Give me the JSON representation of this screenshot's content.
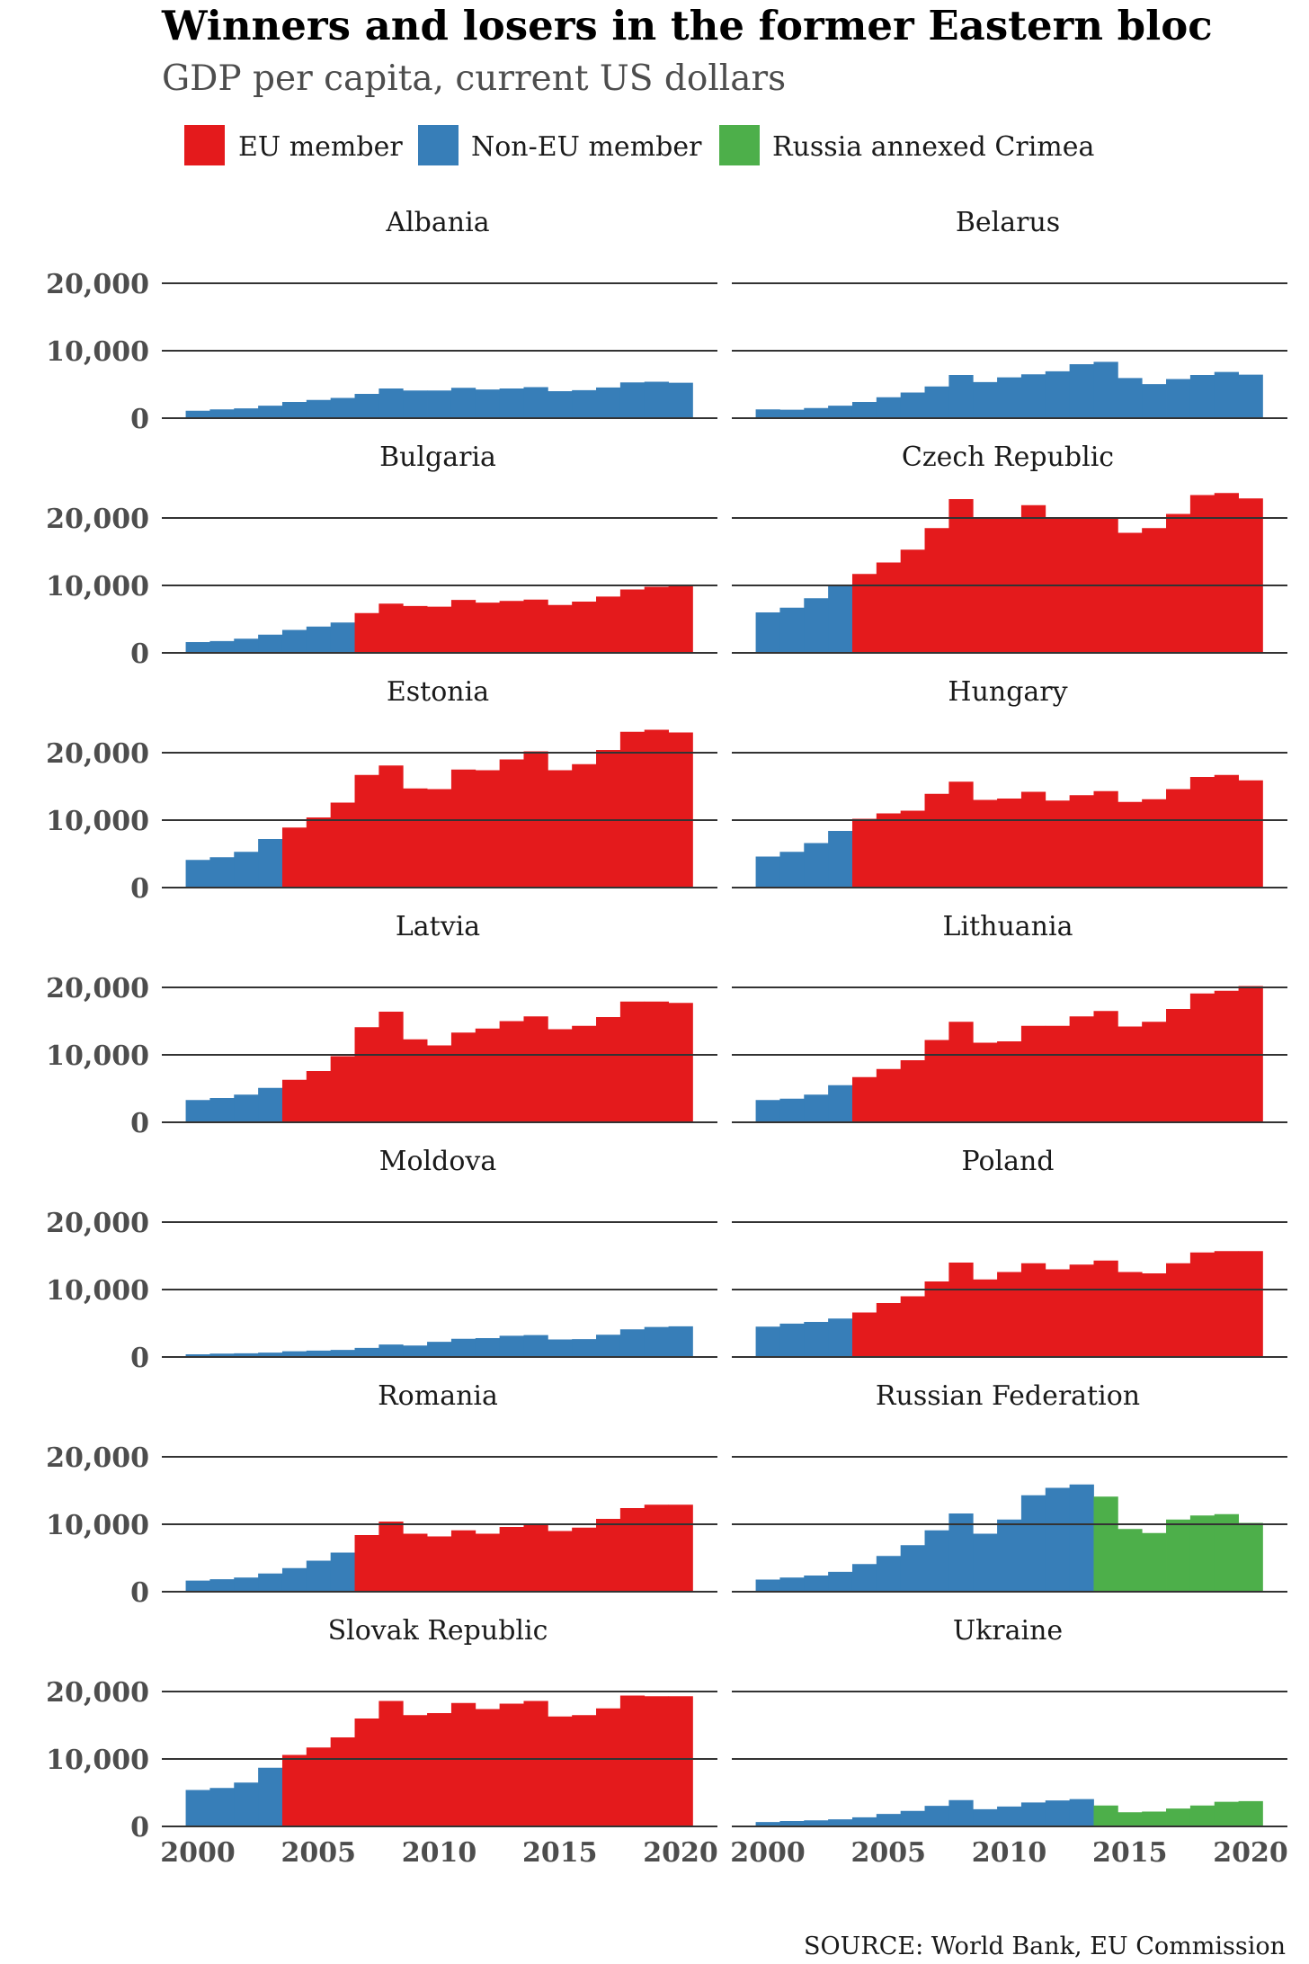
{
  "title": "Winners and losers in the former Eastern bloc",
  "subtitle": "GDP per capita, current US dollars",
  "source": "SOURCE: World Bank, EU Commission",
  "colors": {
    "eu": "#e41a1c",
    "non_eu": "#377eb8",
    "crimea": "#4daf4a",
    "gridline": "#333333"
  },
  "legend": [
    {
      "key": "eu",
      "label": "EU member",
      "color": "#e41a1c"
    },
    {
      "key": "non_eu",
      "label": "Non-EU member",
      "color": "#377eb8"
    },
    {
      "key": "crimea",
      "label": "Russia annexed Crimea",
      "color": "#4daf4a"
    }
  ],
  "chart_data": {
    "type": "bar",
    "layout": "small multiples, 2 columns x 7 rows",
    "x": [
      2000,
      2001,
      2002,
      2003,
      2004,
      2005,
      2006,
      2007,
      2008,
      2009,
      2010,
      2011,
      2012,
      2013,
      2014,
      2015,
      2016,
      2017,
      2018,
      2019,
      2020
    ],
    "xticks": [
      2000,
      2005,
      2010,
      2015,
      2020
    ],
    "ylim": [
      0,
      20000
    ],
    "yticks": [
      0,
      10000,
      20000
    ],
    "ytick_labels": [
      "0",
      "10,000",
      "20,000"
    ],
    "xtick_labels": [
      "2000",
      "2005",
      "2010",
      "2015",
      "2020"
    ],
    "grid": "horizontal",
    "legend_position": "top",
    "panels": [
      {
        "name": "Albania",
        "status_change": [],
        "values": [
          1100,
          1300,
          1450,
          1850,
          2400,
          2700,
          3000,
          3600,
          4400,
          4100,
          4100,
          4500,
          4250,
          4400,
          4600,
          4000,
          4150,
          4550,
          5300,
          5400,
          5250
        ]
      },
      {
        "name": "Belarus",
        "status_change": [],
        "values": [
          1300,
          1250,
          1500,
          1850,
          2400,
          3100,
          3800,
          4700,
          6400,
          5350,
          6050,
          6500,
          6950,
          8000,
          8350,
          5950,
          5050,
          5800,
          6400,
          6850,
          6450
        ]
      },
      {
        "name": "Bulgaria",
        "status_change": [
          {
            "from_year": 2007,
            "status": "eu"
          }
        ],
        "values": [
          1600,
          1750,
          2100,
          2700,
          3400,
          3900,
          4500,
          5900,
          7300,
          6950,
          6850,
          7850,
          7450,
          7700,
          7900,
          7100,
          7600,
          8350,
          9400,
          9800,
          10100
        ]
      },
      {
        "name": "Czech Republic",
        "status_change": [
          {
            "from_year": 2004,
            "status": "eu"
          }
        ],
        "values": [
          6000,
          6700,
          8100,
          10000,
          11700,
          13400,
          15300,
          18500,
          22800,
          19900,
          19900,
          21900,
          19900,
          20100,
          19900,
          17800,
          18500,
          20600,
          23400,
          23700,
          22900
        ]
      },
      {
        "name": "Estonia",
        "status_change": [
          {
            "from_year": 2004,
            "status": "eu"
          }
        ],
        "values": [
          4100,
          4500,
          5300,
          7200,
          8900,
          10400,
          12600,
          16700,
          18100,
          14700,
          14600,
          17500,
          17400,
          19000,
          20200,
          17400,
          18300,
          20400,
          23100,
          23400,
          23000
        ]
      },
      {
        "name": "Hungary",
        "status_change": [
          {
            "from_year": 2004,
            "status": "eu"
          }
        ],
        "values": [
          4600,
          5300,
          6600,
          8400,
          10200,
          11000,
          11400,
          13900,
          15700,
          13000,
          13200,
          14200,
          12900,
          13700,
          14300,
          12700,
          13100,
          14600,
          16400,
          16700,
          15900
        ]
      },
      {
        "name": "Latvia",
        "status_change": [
          {
            "from_year": 2004,
            "status": "eu"
          }
        ],
        "values": [
          3300,
          3600,
          4100,
          5100,
          6300,
          7600,
          9800,
          14100,
          16400,
          12300,
          11400,
          13300,
          13900,
          15000,
          15700,
          13800,
          14300,
          15600,
          17900,
          17900,
          17700
        ]
      },
      {
        "name": "Lithuania",
        "status_change": [
          {
            "from_year": 2004,
            "status": "eu"
          }
        ],
        "values": [
          3300,
          3500,
          4100,
          5500,
          6700,
          7900,
          9200,
          12200,
          14900,
          11800,
          12000,
          14300,
          14300,
          15700,
          16500,
          14200,
          14900,
          16800,
          19100,
          19500,
          20200
        ]
      },
      {
        "name": "Moldova",
        "status_change": [],
        "values": [
          400,
          500,
          550,
          650,
          850,
          950,
          1050,
          1350,
          1850,
          1700,
          2250,
          2700,
          2800,
          3150,
          3250,
          2600,
          2650,
          3300,
          4100,
          4450,
          4550
        ]
      },
      {
        "name": "Poland",
        "status_change": [
          {
            "from_year": 2004,
            "status": "eu"
          }
        ],
        "values": [
          4500,
          4950,
          5200,
          5700,
          6600,
          8000,
          9000,
          11200,
          14000,
          11500,
          12600,
          13900,
          13000,
          13700,
          14300,
          12600,
          12400,
          13900,
          15500,
          15700,
          15700
        ]
      },
      {
        "name": "Romania",
        "status_change": [
          {
            "from_year": 2007,
            "status": "eu"
          }
        ],
        "values": [
          1650,
          1850,
          2100,
          2700,
          3500,
          4600,
          5800,
          8400,
          10400,
          8600,
          8200,
          9100,
          8600,
          9600,
          10000,
          9000,
          9500,
          10800,
          12400,
          12900,
          12900
        ]
      },
      {
        "name": "Russian Federation",
        "status_change": [
          {
            "from_year": 2014,
            "status": "crimea"
          }
        ],
        "values": [
          1800,
          2100,
          2400,
          2950,
          4100,
          5300,
          6900,
          9100,
          11600,
          8600,
          10700,
          14300,
          15400,
          15900,
          14100,
          9300,
          8700,
          10700,
          11300,
          11500,
          10200
        ]
      },
      {
        "name": "Slovak Republic",
        "status_change": [
          {
            "from_year": 2004,
            "status": "eu"
          }
        ],
        "values": [
          5400,
          5700,
          6500,
          8700,
          10600,
          11700,
          13200,
          16000,
          18600,
          16500,
          16800,
          18300,
          17400,
          18200,
          18600,
          16300,
          16500,
          17500,
          19400,
          19300,
          19300
        ]
      },
      {
        "name": "Ukraine",
        "status_change": [
          {
            "from_year": 2014,
            "status": "crimea"
          }
        ],
        "values": [
          650,
          800,
          900,
          1050,
          1350,
          1850,
          2300,
          3050,
          3900,
          2550,
          2950,
          3550,
          3850,
          4050,
          3100,
          2100,
          2200,
          2650,
          3100,
          3650,
          3750
        ]
      }
    ]
  }
}
